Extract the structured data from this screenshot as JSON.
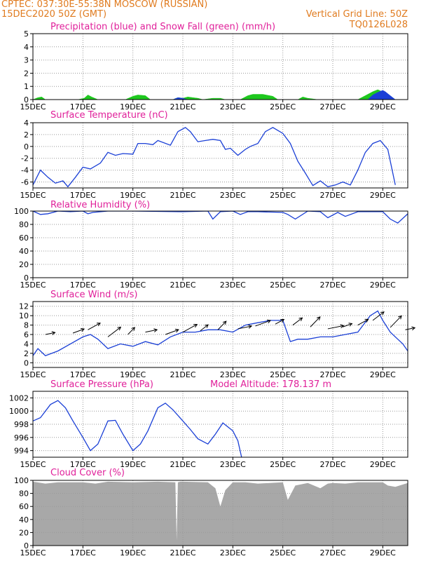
{
  "header": {
    "line1_left": "CPTEC:   037:30E-55:38N   MOSCOW (RUSSIAN)",
    "line2_left": "15DEC2020 50Z (GMT)",
    "line2_right": "Vertical Grid Line: 50Z",
    "line3_right": "TQ0126L028"
  },
  "x_ticks": [
    "15DEC",
    "17DEC",
    "19DEC",
    "21DEC",
    "23DEC",
    "25DEC",
    "27DEC",
    "29DEC"
  ],
  "x_tick_days": [
    0,
    2,
    4,
    6,
    8,
    10,
    12,
    14
  ],
  "x_range_days": [
    0,
    15
  ],
  "colors": {
    "blue": "#1a3fd6",
    "green": "#1ec81e",
    "gray": "#a8a8a8",
    "header": "#e07b1f",
    "title": "#e0209a"
  },
  "chart_data": [
    {
      "type": "area",
      "title": "Precipitation (blue) and Snow Fall (green) (mm/h)",
      "ylim": [
        0,
        5
      ],
      "yticks": [
        0,
        1,
        2,
        3,
        4,
        5
      ],
      "grid": true,
      "series": [
        {
          "name": "Snow Fall",
          "color": "#1ec81e",
          "x": [
            0.0,
            0.2,
            0.35,
            0.5,
            1.8,
            2.05,
            2.2,
            2.35,
            2.6,
            3.7,
            4.0,
            4.2,
            4.5,
            4.7,
            5.6,
            5.8,
            6.0,
            6.2,
            6.4,
            6.6,
            6.8,
            7.2,
            7.5,
            7.7,
            8.3,
            8.6,
            8.8,
            9.2,
            9.6,
            9.8,
            10.6,
            10.8,
            11.0,
            11.4,
            13.0,
            13.3,
            13.6,
            13.8,
            14.1,
            14.3,
            14.5
          ],
          "values": [
            0,
            0.15,
            0.2,
            0,
            0,
            0.1,
            0.35,
            0.2,
            0,
            0,
            0.25,
            0.35,
            0.3,
            0,
            0,
            0.15,
            0.1,
            0.2,
            0.15,
            0.1,
            0,
            0.1,
            0.1,
            0,
            0,
            0.3,
            0.4,
            0.4,
            0.25,
            0,
            0,
            0.2,
            0.1,
            0,
            0,
            0.3,
            0.6,
            0.75,
            0.5,
            0.25,
            0
          ]
        },
        {
          "name": "Precipitation",
          "color": "#1a3fd6",
          "x": [
            0.0,
            5.6,
            5.8,
            6.0,
            6.2,
            13.4,
            13.6,
            13.8,
            14.0,
            14.1,
            14.3,
            14.5
          ],
          "values": [
            0,
            0,
            0.15,
            0.1,
            0,
            0,
            0.35,
            0.55,
            0.7,
            0.6,
            0.3,
            0
          ]
        }
      ]
    },
    {
      "type": "line",
      "title": "Surface Temperature (nC)",
      "ylim": [
        -7,
        4
      ],
      "yticks": [
        -6,
        -4,
        -2,
        0,
        2,
        4
      ],
      "grid": true,
      "x": [
        0.0,
        0.3,
        0.6,
        0.9,
        1.2,
        1.4,
        1.7,
        2.0,
        2.3,
        2.7,
        3.0,
        3.3,
        3.6,
        4.0,
        4.2,
        4.5,
        4.8,
        5.0,
        5.5,
        5.8,
        6.1,
        6.3,
        6.6,
        6.9,
        7.2,
        7.5,
        7.7,
        7.9,
        8.2,
        8.5,
        8.7,
        9.0,
        9.3,
        9.6,
        10.0,
        10.3,
        10.6,
        10.9,
        11.2,
        11.5,
        11.8,
        12.1,
        12.4,
        12.7,
        13.0,
        13.3,
        13.6,
        13.9,
        14.2,
        14.5
      ],
      "values": [
        -6.5,
        -4.0,
        -5.2,
        -6.2,
        -5.8,
        -6.8,
        -5.2,
        -3.5,
        -3.8,
        -2.8,
        -1.0,
        -1.5,
        -1.2,
        -1.3,
        0.5,
        0.5,
        0.3,
        1.0,
        0.2,
        2.5,
        3.2,
        2.5,
        0.8,
        1.0,
        1.2,
        1.0,
        -0.5,
        -0.3,
        -1.5,
        -0.5,
        0.0,
        0.5,
        2.5,
        3.2,
        2.2,
        0.5,
        -2.5,
        -4.5,
        -6.6,
        -5.8,
        -6.8,
        -6.5,
        -6.0,
        -6.5,
        -4.0,
        -1.0,
        0.5,
        1.0,
        -0.5,
        -6.5
      ]
    },
    {
      "type": "line",
      "title": "Relative Humidity (%)",
      "ylim": [
        0,
        100
      ],
      "yticks": [
        0,
        20,
        40,
        60,
        80,
        100
      ],
      "grid": true,
      "x": [
        0.0,
        0.3,
        0.6,
        1.0,
        1.5,
        2.0,
        2.2,
        2.4,
        3.0,
        4.0,
        6.0,
        7.0,
        7.2,
        7.5,
        8.0,
        8.3,
        8.6,
        9.0,
        10.0,
        10.2,
        10.5,
        11.0,
        11.5,
        11.8,
        12.2,
        12.5,
        13.0,
        14.0,
        14.3,
        14.6,
        15.0
      ],
      "values": [
        100,
        95,
        96,
        100,
        99,
        100,
        96,
        98,
        100,
        100,
        99,
        100,
        88,
        99,
        100,
        95,
        99,
        99,
        98,
        95,
        88,
        100,
        99,
        90,
        98,
        92,
        99,
        99,
        88,
        82,
        96
      ]
    },
    {
      "type": "line",
      "title": "Surface Wind (m/s)",
      "ylim": [
        -1,
        13
      ],
      "yticks": [
        0,
        2,
        4,
        6,
        8,
        10,
        12
      ],
      "grid": true,
      "x": [
        0.0,
        0.2,
        0.5,
        1.0,
        1.5,
        2.0,
        2.3,
        2.6,
        3.0,
        3.5,
        4.0,
        4.5,
        5.0,
        5.5,
        6.0,
        6.5,
        7.0,
        7.5,
        8.0,
        8.5,
        9.0,
        9.5,
        10.0,
        10.3,
        10.6,
        11.0,
        11.5,
        12.0,
        12.5,
        13.0,
        13.5,
        13.8,
        14.0,
        14.3,
        14.6,
        14.8,
        15.0
      ],
      "values": [
        1.5,
        3.0,
        1.5,
        2.5,
        4.0,
        5.5,
        6.0,
        5.0,
        3.0,
        4.0,
        3.5,
        4.5,
        3.8,
        5.5,
        6.5,
        6.5,
        7.0,
        7.0,
        6.5,
        8.0,
        8.5,
        9.0,
        9.0,
        4.5,
        5.0,
        5.0,
        5.5,
        5.5,
        6.0,
        6.5,
        10.0,
        11.0,
        9.0,
        6.5,
        5.0,
        4.0,
        2.5
      ]
    },
    {
      "type": "line",
      "title": "Surface Pressure (hPa)",
      "annotation": "Model Altitude: 178.137 m",
      "ylim": [
        993,
        1003
      ],
      "yticks": [
        994,
        996,
        998,
        1000,
        1002
      ],
      "grid": true,
      "x": [
        0.0,
        0.3,
        0.7,
        1.0,
        1.3,
        1.6,
        2.0,
        2.3,
        2.6,
        3.0,
        3.3,
        3.6,
        4.0,
        4.3,
        4.6,
        5.0,
        5.3,
        5.6,
        6.0,
        6.3,
        6.6,
        7.0,
        7.3,
        7.6,
        8.0,
        8.2,
        8.35
      ],
      "values": [
        998.5,
        999.0,
        1001.0,
        1001.6,
        1000.5,
        998.5,
        996.0,
        994.0,
        995.0,
        998.5,
        998.6,
        996.5,
        994.0,
        995.0,
        997.0,
        1000.5,
        1001.2,
        1000.2,
        998.5,
        997.2,
        995.8,
        995.0,
        996.5,
        998.2,
        997.0,
        995.5,
        993.0
      ]
    },
    {
      "type": "area",
      "title": "Cloud Cover (%)",
      "ylim": [
        0,
        100
      ],
      "yticks": [
        0,
        20,
        40,
        60,
        80,
        100
      ],
      "grid": true,
      "series": [
        {
          "name": "Cloud Cover",
          "color": "#a8a8a8",
          "x": [
            0.0,
            0.5,
            1.0,
            2.0,
            2.5,
            3.0,
            4.0,
            5.0,
            5.7,
            5.75,
            5.8,
            5.9,
            6.0,
            7.0,
            7.3,
            7.5,
            7.7,
            8.0,
            8.5,
            9.0,
            10.0,
            10.2,
            10.5,
            11.0,
            11.5,
            11.8,
            12.0,
            12.5,
            13.0,
            14.0,
            14.2,
            14.5,
            15.0
          ],
          "values": [
            98,
            95,
            97,
            97,
            95,
            98,
            97,
            98,
            97,
            8,
            97,
            98,
            98,
            97,
            88,
            60,
            85,
            97,
            97,
            95,
            97,
            70,
            92,
            96,
            88,
            95,
            96,
            95,
            97,
            97,
            92,
            90,
            96
          ]
        }
      ]
    }
  ]
}
